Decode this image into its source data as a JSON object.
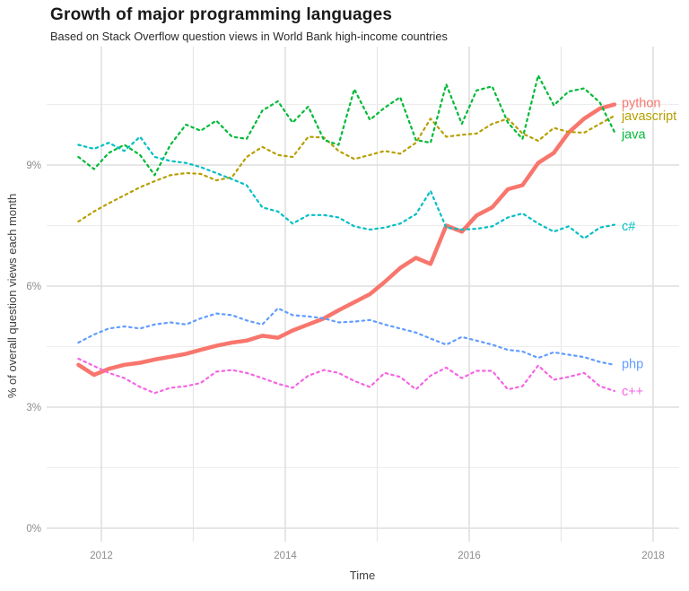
{
  "header": {
    "title": "Growth of major programming languages",
    "subtitle": "Based on Stack Overflow question views in World Bank high-income countries"
  },
  "chart_data": {
    "type": "line",
    "title": "Growth of major programming languages",
    "subtitle": "Based on Stack Overflow question views in World Bank high-income countries",
    "xlabel": "Time",
    "ylabel": "% of overall question views each month",
    "xlim": [
      2011.4,
      2018.3
    ],
    "ylim": [
      0,
      11.9
    ],
    "grid": true,
    "x_major": [
      2012,
      2014,
      2016,
      2018
    ],
    "x_tick_labels": [
      "2012",
      "2014",
      "2016",
      "2018"
    ],
    "x_minor": [
      2013,
      2015,
      2017
    ],
    "y_major": [
      0,
      3,
      6,
      9
    ],
    "y_tick_labels": [
      "0%",
      "3%",
      "6%",
      "9%"
    ],
    "y_minor": [
      1.5,
      4.5,
      7.5,
      10.5
    ],
    "x": [
      2011.75,
      2011.92,
      2012.08,
      2012.25,
      2012.42,
      2012.58,
      2012.75,
      2012.92,
      2013.08,
      2013.25,
      2013.42,
      2013.58,
      2013.75,
      2013.92,
      2014.08,
      2014.25,
      2014.42,
      2014.58,
      2014.75,
      2014.92,
      2015.08,
      2015.25,
      2015.42,
      2015.58,
      2015.75,
      2015.92,
      2016.08,
      2016.25,
      2016.42,
      2016.58,
      2016.75,
      2016.92,
      2017.08,
      2017.25,
      2017.42,
      2017.58
    ],
    "series": [
      {
        "name": "python",
        "label": "python",
        "color": "#F8766D",
        "dashed": false,
        "width": 4.5,
        "values": [
          4.05,
          3.8,
          3.95,
          4.05,
          4.1,
          4.18,
          4.25,
          4.32,
          4.42,
          4.52,
          4.6,
          4.65,
          4.77,
          4.72,
          4.9,
          5.05,
          5.2,
          5.4,
          5.6,
          5.8,
          6.1,
          6.45,
          6.7,
          6.55,
          7.5,
          7.35,
          7.75,
          7.95,
          8.4,
          8.5,
          9.05,
          9.3,
          9.8,
          10.15,
          10.4,
          10.5
        ]
      },
      {
        "name": "javascript",
        "label": "javascript",
        "color": "#B79F00",
        "dashed": true,
        "width": 2.2,
        "values": [
          7.6,
          7.85,
          8.05,
          8.25,
          8.45,
          8.6,
          8.75,
          8.8,
          8.78,
          8.62,
          8.7,
          9.2,
          9.45,
          9.25,
          9.2,
          9.7,
          9.68,
          9.35,
          9.15,
          9.25,
          9.35,
          9.28,
          9.55,
          10.15,
          9.7,
          9.75,
          9.78,
          10.02,
          10.15,
          9.78,
          9.6,
          9.92,
          9.82,
          9.8,
          10.02,
          10.22
        ]
      },
      {
        "name": "java",
        "label": "java",
        "color": "#00BA38",
        "dashed": true,
        "width": 2.2,
        "values": [
          9.2,
          8.9,
          9.3,
          9.5,
          9.25,
          8.75,
          9.5,
          10.0,
          9.85,
          10.1,
          9.7,
          9.65,
          10.35,
          10.58,
          10.05,
          10.45,
          9.62,
          9.5,
          10.88,
          10.12,
          10.42,
          10.68,
          9.62,
          9.55,
          11.0,
          10.02,
          10.85,
          10.95,
          10.05,
          9.65,
          11.22,
          10.48,
          10.82,
          10.9,
          10.55,
          9.82
        ]
      },
      {
        "name": "c#",
        "label": "c#",
        "color": "#00BFC4",
        "dashed": true,
        "width": 2.2,
        "values": [
          9.5,
          9.4,
          9.55,
          9.35,
          9.7,
          9.2,
          9.1,
          9.05,
          8.95,
          8.8,
          8.65,
          8.5,
          7.95,
          7.85,
          7.55,
          7.76,
          7.76,
          7.7,
          7.48,
          7.4,
          7.45,
          7.55,
          7.78,
          8.36,
          7.45,
          7.4,
          7.42,
          7.48,
          7.7,
          7.8,
          7.55,
          7.35,
          7.48,
          7.18,
          7.45,
          7.52
        ]
      },
      {
        "name": "php",
        "label": "php",
        "color": "#619CFF",
        "dashed": true,
        "width": 2.2,
        "values": [
          4.6,
          4.8,
          4.95,
          5.0,
          4.95,
          5.05,
          5.1,
          5.05,
          5.2,
          5.32,
          5.28,
          5.15,
          5.05,
          5.45,
          5.28,
          5.25,
          5.2,
          5.1,
          5.12,
          5.16,
          5.05,
          4.95,
          4.85,
          4.7,
          4.55,
          4.74,
          4.65,
          4.55,
          4.42,
          4.38,
          4.22,
          4.36,
          4.3,
          4.24,
          4.12,
          4.05
        ]
      },
      {
        "name": "c++",
        "label": "c++",
        "color": "#F564E3",
        "dashed": true,
        "width": 2.2,
        "values": [
          4.2,
          4.02,
          3.85,
          3.72,
          3.5,
          3.35,
          3.48,
          3.52,
          3.6,
          3.88,
          3.92,
          3.85,
          3.72,
          3.58,
          3.48,
          3.78,
          3.92,
          3.85,
          3.65,
          3.5,
          3.85,
          3.75,
          3.44,
          3.78,
          3.98,
          3.72,
          3.9,
          3.9,
          3.44,
          3.52,
          4.03,
          3.68,
          3.75,
          3.85,
          3.52,
          3.4
        ]
      }
    ]
  }
}
